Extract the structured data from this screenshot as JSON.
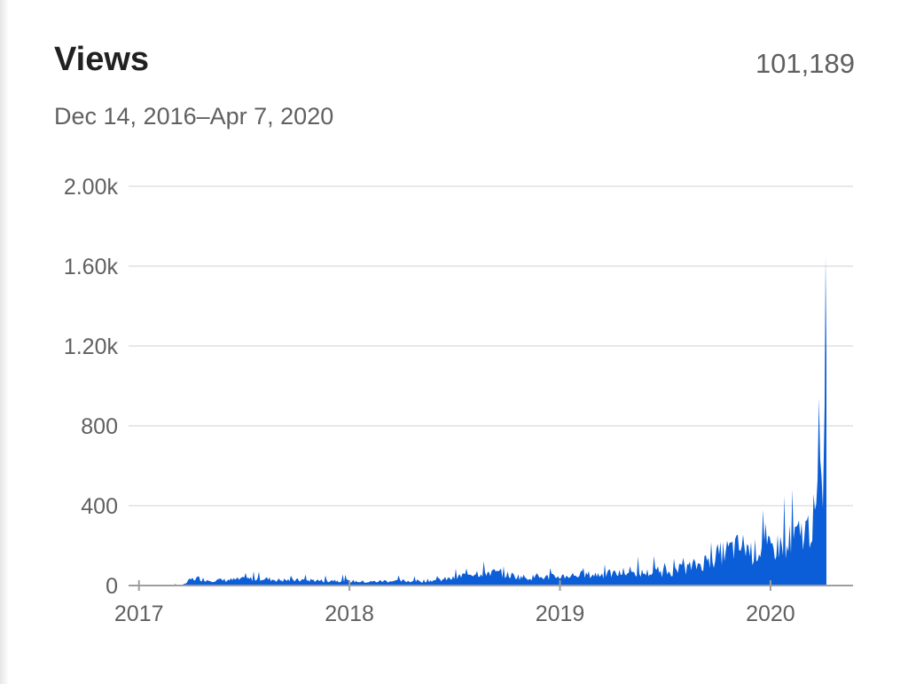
{
  "header": {
    "title": "Views",
    "total": "101,189",
    "date_range": "Dec 14, 2016–Apr 7, 2020"
  },
  "colors": {
    "series": "#0b5ed7",
    "grid": "#e8e8e8",
    "axis": "#9e9e9e",
    "text": "#606060"
  },
  "chart_data": {
    "type": "area",
    "title": "Views",
    "xlabel": "",
    "ylabel": "",
    "ylim": [
      0,
      2000
    ],
    "y_ticks": [
      0,
      400,
      800,
      1200,
      1600,
      2000
    ],
    "y_tick_labels": [
      "0",
      "400",
      "800",
      "1.20k",
      "1.60k",
      "2.00k"
    ],
    "x_ticks": [
      "2017",
      "2018",
      "2019",
      "2020"
    ],
    "x_range": [
      "2016-12-14",
      "2020-04-07"
    ],
    "grid": true,
    "series": [
      {
        "x": [
          "2016-12-14",
          "2017-02-01",
          "2017-03-20",
          "2017-04-01",
          "2017-04-15",
          "2017-05-01",
          "2017-06-01",
          "2017-07-01",
          "2017-08-01",
          "2017-09-01",
          "2017-10-01",
          "2017-11-01",
          "2017-11-20",
          "2017-12-01",
          "2018-01-01",
          "2018-02-01",
          "2018-03-01",
          "2018-04-01",
          "2018-05-01",
          "2018-06-01",
          "2018-07-01",
          "2018-08-01",
          "2018-09-01",
          "2018-10-01",
          "2018-11-01",
          "2018-12-01",
          "2019-01-01",
          "2019-02-01",
          "2019-03-01",
          "2019-04-01",
          "2019-05-01",
          "2019-06-01",
          "2019-07-01",
          "2019-08-01",
          "2019-09-01",
          "2019-09-25",
          "2019-10-15",
          "2019-11-01",
          "2019-11-20",
          "2019-12-01",
          "2019-12-15",
          "2020-01-01",
          "2020-01-15",
          "2020-02-01",
          "2020-02-15",
          "2020-03-01",
          "2020-03-10",
          "2020-03-20",
          "2020-03-25",
          "2020-03-30",
          "2020-04-03",
          "2020-04-05",
          "2020-04-07"
        ],
        "y": [
          0,
          0,
          5,
          35,
          40,
          30,
          30,
          35,
          40,
          30,
          30,
          30,
          25,
          30,
          25,
          20,
          25,
          25,
          25,
          30,
          40,
          70,
          75,
          60,
          45,
          45,
          50,
          60,
          60,
          65,
          70,
          70,
          75,
          90,
          120,
          160,
          190,
          210,
          220,
          180,
          210,
          200,
          220,
          250,
          270,
          300,
          330,
          400,
          480,
          550,
          700,
          1650,
          1650
        ]
      }
    ]
  }
}
